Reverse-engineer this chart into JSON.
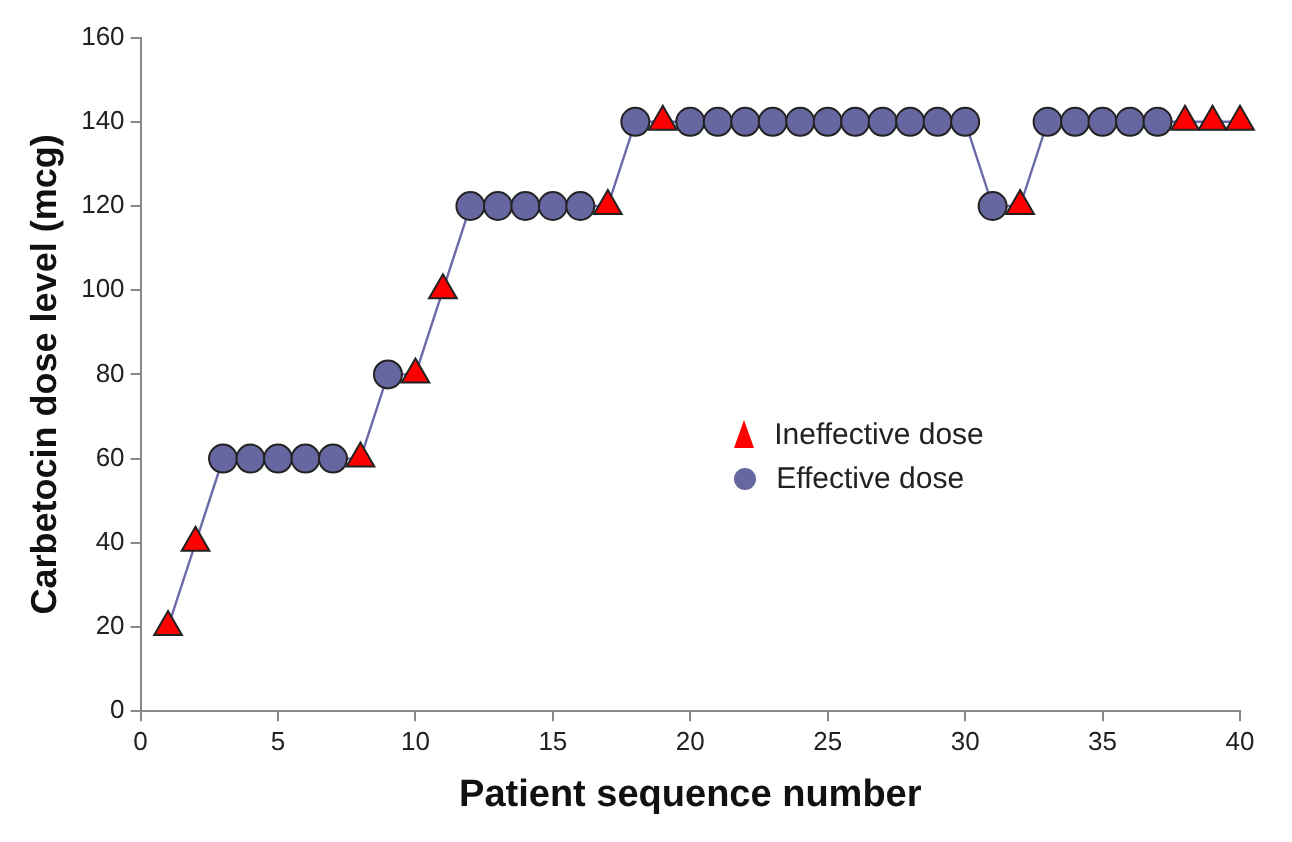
{
  "chart_data": {
    "type": "scatter",
    "xlabel": "Patient sequence number",
    "ylabel": "Carbetocin dose level (mcg)",
    "xlim": [
      0,
      40
    ],
    "xticks": [
      0,
      5,
      10,
      15,
      20,
      25,
      30,
      35,
      40
    ],
    "ylim": [
      0,
      160
    ],
    "yticks": [
      0,
      20,
      40,
      60,
      80,
      100,
      120,
      140,
      160
    ],
    "grid": false,
    "legend": "right",
    "x": [
      1,
      2,
      3,
      4,
      5,
      6,
      7,
      8,
      9,
      10,
      11,
      12,
      13,
      14,
      15,
      16,
      17,
      18,
      19,
      20,
      21,
      22,
      23,
      24,
      25,
      26,
      27,
      28,
      29,
      30,
      31,
      32,
      33,
      34,
      35,
      36,
      37,
      38,
      39,
      40
    ],
    "series": [
      {
        "type": "line",
        "color": "#6a6aa8",
        "marker": "none",
        "values": [
          20,
          40,
          60,
          60,
          60,
          60,
          60,
          60,
          80,
          80,
          100,
          120,
          120,
          120,
          120,
          120,
          120,
          140,
          140,
          140,
          140,
          140,
          140,
          140,
          140,
          140,
          140,
          140,
          140,
          140,
          120,
          120,
          140,
          140,
          140,
          140,
          140,
          140,
          140,
          140
        ]
      },
      {
        "type": "scatter",
        "name": "Ineffective dose",
        "color": "#ff0000",
        "marker": "triangle",
        "x": [
          1,
          2,
          8,
          10,
          11,
          17,
          19,
          32,
          38,
          39,
          40
        ],
        "values": [
          20,
          40,
          60,
          80,
          100,
          120,
          140,
          120,
          140,
          140,
          140
        ]
      },
      {
        "type": "scatter",
        "name": "Effective dose",
        "color": "#6666a0",
        "marker": "circle",
        "x": [
          3,
          4,
          5,
          6,
          7,
          9,
          12,
          13,
          14,
          15,
          16,
          18,
          20,
          21,
          22,
          23,
          24,
          25,
          26,
          27,
          28,
          29,
          30,
          31,
          33,
          34,
          35,
          36,
          37
        ],
        "values": [
          60,
          60,
          60,
          60,
          60,
          80,
          120,
          120,
          120,
          120,
          120,
          140,
          140,
          140,
          140,
          140,
          140,
          140,
          140,
          140,
          140,
          140,
          140,
          120,
          140,
          140,
          140,
          140,
          140
        ]
      }
    ]
  }
}
